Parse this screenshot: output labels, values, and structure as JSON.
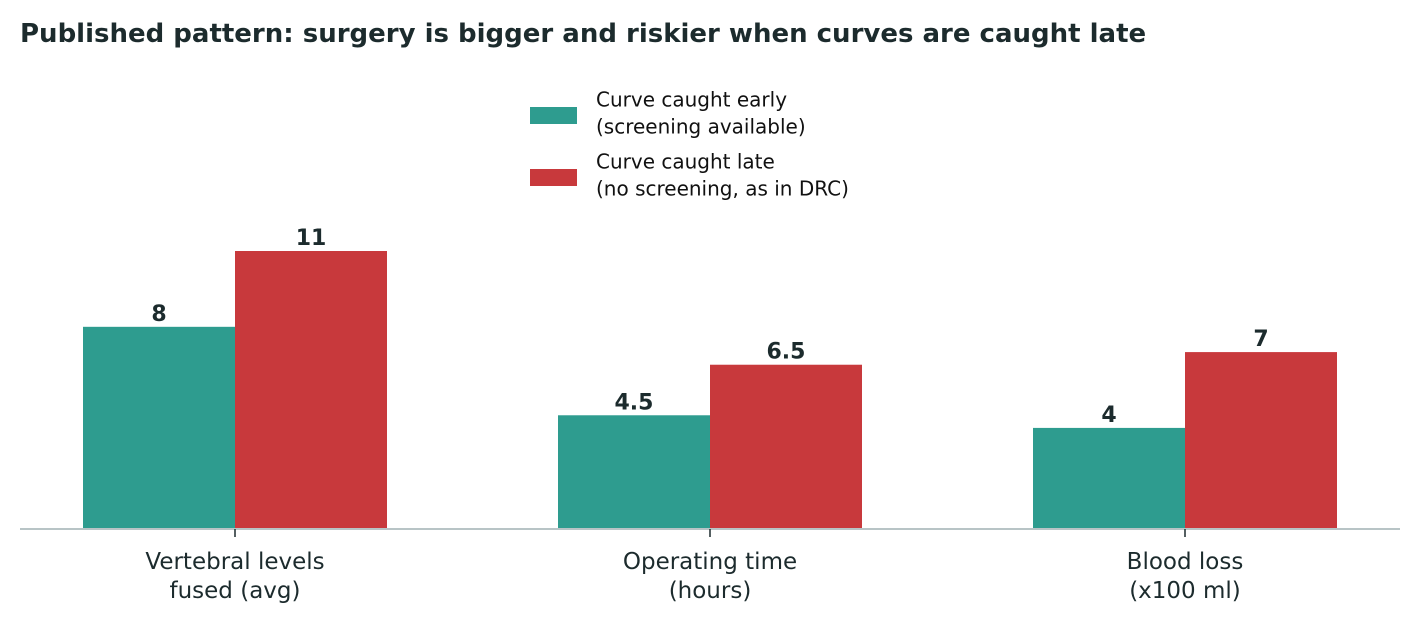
{
  "chart_data": {
    "type": "bar",
    "title": "Published pattern: surgery is bigger and riskier when curves are caught late",
    "xlabel": "",
    "ylabel": "",
    "categories": [
      "Vertebral levels\nfused (avg)",
      "Operating time\n(hours)",
      "Blood loss\n(x100 ml)"
    ],
    "series": [
      {
        "name": "Curve caught early\n(screening available)",
        "values": [
          8,
          4.5,
          4
        ],
        "labels": [
          "8",
          "4.5",
          "4"
        ],
        "color": "#2e9c8f"
      },
      {
        "name": "Curve caught late\n(no screening, as in DRC)",
        "values": [
          11,
          6.5,
          7
        ],
        "labels": [
          "11",
          "6.5",
          "7"
        ],
        "color": "#c8393c"
      }
    ],
    "ylim": [
      0,
      11.0
    ],
    "grid": false,
    "legend_position": "top-center",
    "colors": {
      "title": "#1c2b2d",
      "axis": "#b8c4c6",
      "text": "#1c2b2d"
    }
  }
}
